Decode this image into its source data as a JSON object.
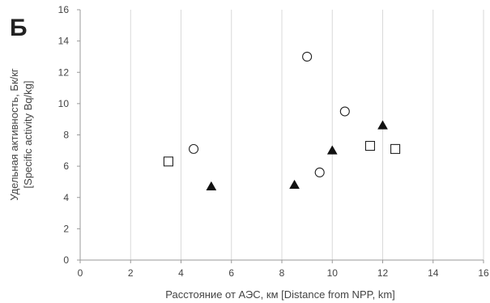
{
  "panel_label": "Б",
  "chart_data": {
    "type": "scatter",
    "title": "",
    "xlabel": "Расстояние от АЭС, км [Distance from NPP, km]",
    "ylabel_lines": [
      "Удельная активность, Бк/кг",
      "[Specific activity Bq/kg]"
    ],
    "xlim": [
      0,
      16
    ],
    "ylim": [
      0,
      16
    ],
    "x_ticks": [
      0,
      2,
      4,
      6,
      8,
      10,
      12,
      14,
      16
    ],
    "y_ticks": [
      0,
      2,
      4,
      6,
      8,
      10,
      12,
      14,
      16
    ],
    "grid": "vertical",
    "legend": "none",
    "colors": {
      "grid": "#d9d9d9",
      "axis": "#999999",
      "marker_stroke": "#222222",
      "marker_fill_filled": "#111111",
      "marker_fill_open": "#ffffff"
    },
    "series": [
      {
        "marker": "square-open",
        "points": [
          {
            "x": 3.5,
            "y": 6.3
          },
          {
            "x": 11.5,
            "y": 7.3
          },
          {
            "x": 12.5,
            "y": 7.1
          }
        ]
      },
      {
        "marker": "circle-open",
        "points": [
          {
            "x": 4.5,
            "y": 7.1
          },
          {
            "x": 9.0,
            "y": 13.0
          },
          {
            "x": 9.5,
            "y": 5.6
          },
          {
            "x": 10.5,
            "y": 9.5
          }
        ]
      },
      {
        "marker": "triangle-filled",
        "points": [
          {
            "x": 5.2,
            "y": 4.7
          },
          {
            "x": 8.5,
            "y": 4.8
          },
          {
            "x": 10.0,
            "y": 7.0
          },
          {
            "x": 12.0,
            "y": 8.6
          }
        ]
      }
    ]
  }
}
